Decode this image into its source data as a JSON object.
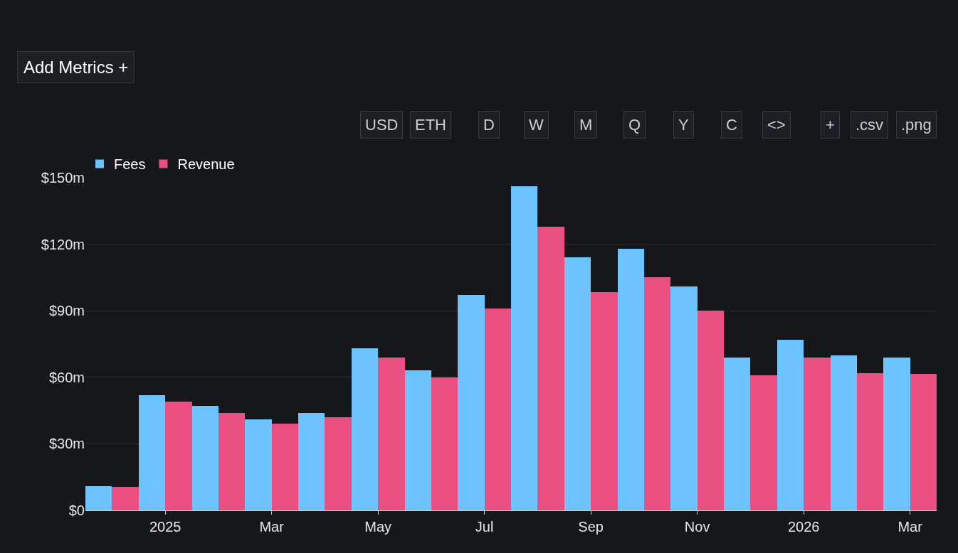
{
  "chart_data": {
    "type": "bar",
    "categories": [
      null,
      "2025",
      null,
      "Mar",
      null,
      "May",
      null,
      "Jul",
      null,
      "Sep",
      null,
      "Nov",
      null,
      "2026",
      null,
      "Mar"
    ],
    "series": [
      {
        "name": "Fees",
        "color": "#6cc3ff",
        "values": [
          11,
          52,
          47,
          41,
          44,
          73,
          63,
          97,
          146,
          114,
          118,
          101,
          69,
          77,
          70,
          69
        ]
      },
      {
        "name": "Revenue",
        "color": "#e94f80",
        "values": [
          10.5,
          49,
          44,
          39,
          42,
          69,
          60,
          91,
          128,
          98.5,
          105,
          90,
          61,
          69,
          62,
          61.5
        ]
      }
    ],
    "ylim": [
      0,
      150
    ],
    "yticks": [
      {
        "value": 0,
        "label": "$0"
      },
      {
        "value": 30,
        "label": "$30m"
      },
      {
        "value": 60,
        "label": "$60m"
      },
      {
        "value": 90,
        "label": "$90m"
      },
      {
        "value": 120,
        "label": "$120m"
      },
      {
        "value": 150,
        "label": "$150m"
      }
    ],
    "grid": "y",
    "legend": "top left",
    "annotations": [
      "Add Metrics +",
      "USD",
      "ETH",
      "D",
      "W",
      "M",
      "Q",
      "Y",
      "C",
      "<>",
      "+",
      ".csv",
      ".png"
    ]
  }
}
